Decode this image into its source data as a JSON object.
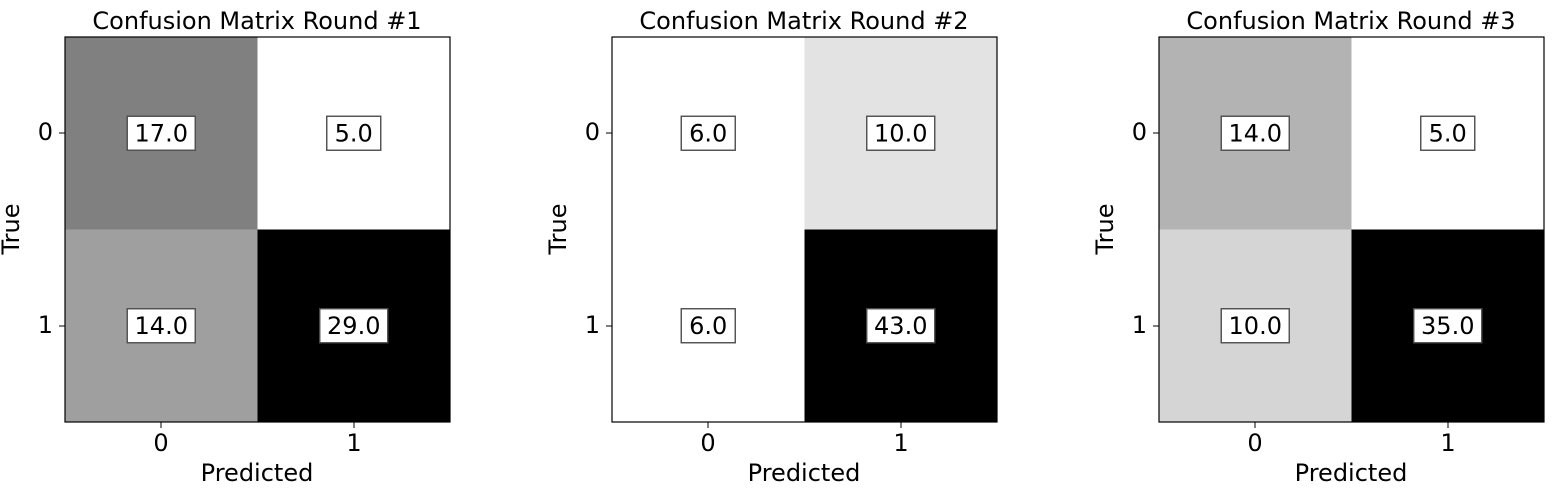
{
  "chart_data": [
    {
      "type": "heatmap",
      "title": "Confusion Matrix Round #1",
      "xlabel": "Predicted",
      "ylabel": "True",
      "x_ticks": [
        "0",
        "1"
      ],
      "y_ticks": [
        "0",
        "1"
      ],
      "colormap": "grayscale (white = low, black = high)",
      "values": [
        [
          17.0,
          5.0
        ],
        [
          14.0,
          29.0
        ]
      ],
      "value_labels": [
        [
          "17.0",
          "5.0"
        ],
        [
          "14.0",
          "29.0"
        ]
      ]
    },
    {
      "type": "heatmap",
      "title": "Confusion Matrix Round #2",
      "xlabel": "Predicted",
      "ylabel": "True",
      "x_ticks": [
        "0",
        "1"
      ],
      "y_ticks": [
        "0",
        "1"
      ],
      "colormap": "grayscale (white = low, black = high)",
      "values": [
        [
          6.0,
          10.0
        ],
        [
          6.0,
          43.0
        ]
      ],
      "value_labels": [
        [
          "6.0",
          "10.0"
        ],
        [
          "6.0",
          "43.0"
        ]
      ]
    },
    {
      "type": "heatmap",
      "title": "Confusion Matrix Round #3",
      "xlabel": "Predicted",
      "ylabel": "True",
      "x_ticks": [
        "0",
        "1"
      ],
      "y_ticks": [
        "0",
        "1"
      ],
      "colormap": "grayscale (white = low, black = high)",
      "values": [
        [
          14.0,
          5.0
        ],
        [
          10.0,
          35.0
        ]
      ],
      "value_labels": [
        [
          "14.0",
          "5.0"
        ],
        [
          "10.0",
          "35.0"
        ]
      ]
    }
  ]
}
